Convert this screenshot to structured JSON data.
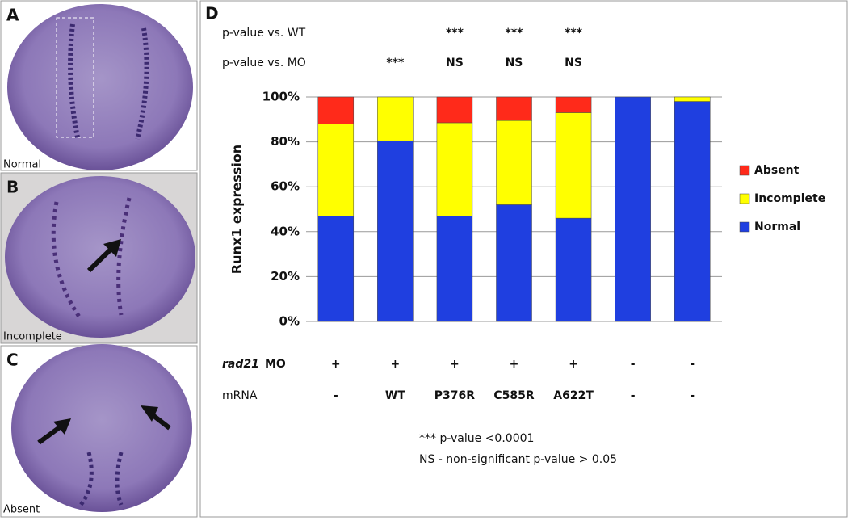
{
  "panels": [
    {
      "letter": "A",
      "caption": "Normal"
    },
    {
      "letter": "B",
      "caption": "Incomplete"
    },
    {
      "letter": "C",
      "caption": "Absent"
    }
  ],
  "chart_data": {
    "type": "stacked-bar",
    "panel_letter": "D",
    "y_label": "Runx1 expression",
    "categories": [
      null,
      null,
      null,
      null,
      null,
      null,
      null
    ],
    "series": [
      {
        "name": "Absent",
        "color": "#ff2a1a",
        "values": [
          12,
          0,
          11.5,
          10.5,
          7,
          0,
          0
        ]
      },
      {
        "name": "Incomplete",
        "color": "#ffff00",
        "values": [
          41,
          19.5,
          41.5,
          37.5,
          47,
          0,
          2
        ]
      },
      {
        "name": "Normal",
        "color": "#1f3fe0",
        "values": [
          47,
          80.5,
          47,
          52,
          46,
          100,
          98
        ]
      }
    ],
    "ylim": [
      0,
      100
    ],
    "yticks": [
      {
        "value": 0,
        "label": "0%"
      },
      {
        "value": 20,
        "label": "20%"
      },
      {
        "value": 40,
        "label": "40%"
      },
      {
        "value": 60,
        "label": "60%"
      },
      {
        "value": 80,
        "label": "80%"
      },
      {
        "value": 100,
        "label": "100%"
      }
    ],
    "grid": true,
    "legend": "right",
    "top_rows": [
      {
        "label": "p-value vs. WT",
        "values": [
          null,
          null,
          "***",
          "***",
          "***",
          null,
          null
        ]
      },
      {
        "label": "p-value vs. MO",
        "values": [
          null,
          "***",
          "NS",
          "NS",
          "NS",
          null,
          null
        ]
      }
    ],
    "bottom_rows": [
      {
        "label_italic": "rad21",
        "label": "MO",
        "values": [
          "+",
          "+",
          "+",
          "+",
          "+",
          "-",
          "-"
        ]
      },
      {
        "label": "mRNA",
        "values": [
          "-",
          "WT",
          "P376R",
          "C585R",
          "A622T",
          "-",
          "-"
        ]
      }
    ],
    "footnotes": [
      "*** p-value <0.0001",
      "NS - non-significant p-value > 0.05"
    ]
  }
}
